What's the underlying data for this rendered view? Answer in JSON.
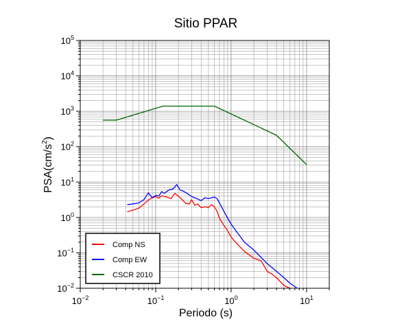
{
  "chart_data": {
    "type": "line",
    "title": "Sitio PPAR",
    "xlabel": "Periodo (s)",
    "ylabel_base": "PSA(cm/s",
    "ylabel_sup": "2",
    "ylabel_close": ")",
    "xscale": "log",
    "yscale": "log",
    "xlim": [
      0.01,
      20
    ],
    "ylim": [
      0.01,
      100000
    ],
    "grid": true,
    "legend_position": "bottom-left",
    "x_ticks": [
      {
        "value": 0.01,
        "base": "10",
        "exp": "−2"
      },
      {
        "value": 0.1,
        "base": "10",
        "exp": "−1"
      },
      {
        "value": 1,
        "base": "10",
        "exp": "0"
      },
      {
        "value": 10,
        "base": "10",
        "exp": "1"
      }
    ],
    "y_ticks": [
      {
        "value": 0.01,
        "base": "10",
        "exp": "−2"
      },
      {
        "value": 0.1,
        "base": "10",
        "exp": "−1"
      },
      {
        "value": 1,
        "base": "10",
        "exp": "0"
      },
      {
        "value": 10,
        "base": "10",
        "exp": "1"
      },
      {
        "value": 100,
        "base": "10",
        "exp": "2"
      },
      {
        "value": 1000,
        "base": "10",
        "exp": "3"
      },
      {
        "value": 10000,
        "base": "10",
        "exp": "4"
      },
      {
        "value": 100000,
        "base": "10",
        "exp": "5"
      }
    ],
    "series": [
      {
        "name": "Comp NS",
        "color": "#ff0000",
        "x": [
          0.042,
          0.05,
          0.06,
          0.07,
          0.08,
          0.09,
          0.1,
          0.11,
          0.12,
          0.14,
          0.16,
          0.18,
          0.2,
          0.22,
          0.25,
          0.28,
          0.3,
          0.33,
          0.36,
          0.4,
          0.45,
          0.5,
          0.55,
          0.6,
          0.65,
          0.7,
          0.8,
          0.9,
          1.0,
          1.2,
          1.5,
          2.0,
          2.5,
          3.0,
          3.5,
          4.0,
          5.0,
          6.0,
          7.0
        ],
        "y": [
          1.45,
          1.6,
          1.85,
          2.4,
          3.1,
          3.6,
          3.9,
          3.5,
          4.1,
          3.8,
          3.4,
          4.8,
          4.0,
          3.3,
          2.5,
          2.4,
          3.2,
          2.2,
          2.4,
          1.9,
          2.0,
          1.9,
          2.3,
          2.0,
          1.5,
          0.95,
          0.6,
          0.42,
          0.28,
          0.18,
          0.11,
          0.07,
          0.06,
          0.03,
          0.025,
          0.02,
          0.012,
          0.01,
          0.009
        ]
      },
      {
        "name": "Comp EW",
        "color": "#0000ff",
        "x": [
          0.042,
          0.05,
          0.06,
          0.07,
          0.08,
          0.09,
          0.1,
          0.11,
          0.12,
          0.13,
          0.15,
          0.17,
          0.19,
          0.21,
          0.23,
          0.26,
          0.3,
          0.35,
          0.4,
          0.45,
          0.5,
          0.55,
          0.6,
          0.65,
          0.7,
          0.8,
          0.9,
          1.0,
          1.2,
          1.5,
          2.0,
          3.0,
          4.0,
          5.0,
          6.0,
          7.5
        ],
        "y": [
          2.3,
          2.4,
          2.6,
          3.2,
          5.0,
          3.6,
          4.2,
          4.0,
          5.4,
          4.8,
          6.0,
          6.4,
          8.5,
          6.0,
          5.6,
          4.8,
          3.9,
          3.4,
          3.0,
          3.6,
          3.4,
          3.6,
          3.8,
          3.4,
          2.6,
          1.5,
          0.95,
          0.65,
          0.38,
          0.2,
          0.12,
          0.05,
          0.03,
          0.02,
          0.014,
          0.01
        ]
      },
      {
        "name": "CSCR 2010",
        "color": "#006400",
        "x": [
          0.02,
          0.03,
          0.125,
          0.6,
          4.0,
          10.0
        ],
        "y": [
          560,
          560,
          1400,
          1400,
          210,
          31
        ]
      }
    ]
  }
}
